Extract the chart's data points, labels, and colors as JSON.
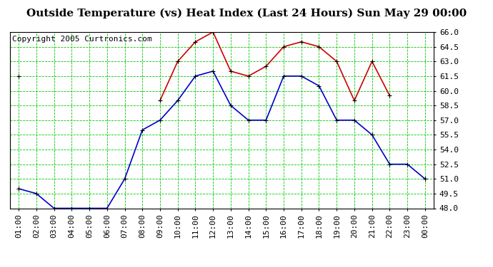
{
  "title": "Outside Temperature (vs) Heat Index (Last 24 Hours) Sun May 29 00:00",
  "copyright": "Copyright 2005 Curtronics.com",
  "hours": [
    "01:00",
    "02:00",
    "03:00",
    "04:00",
    "05:00",
    "06:00",
    "07:00",
    "08:00",
    "09:00",
    "10:00",
    "11:00",
    "12:00",
    "13:00",
    "14:00",
    "15:00",
    "16:00",
    "17:00",
    "18:00",
    "19:00",
    "20:00",
    "21:00",
    "22:00",
    "23:00",
    "00:00"
  ],
  "blue_data": [
    50.0,
    49.5,
    48.0,
    48.0,
    48.0,
    48.0,
    51.0,
    56.0,
    57.0,
    59.0,
    61.5,
    62.0,
    58.5,
    57.0,
    57.0,
    61.5,
    61.5,
    60.5,
    57.0,
    57.0,
    55.5,
    52.5,
    52.5,
    51.0
  ],
  "red_data": [
    61.5,
    null,
    null,
    null,
    null,
    null,
    null,
    null,
    59.0,
    63.0,
    65.0,
    66.0,
    62.0,
    61.5,
    62.5,
    64.5,
    65.0,
    64.5,
    63.0,
    59.0,
    63.0,
    59.5,
    null,
    51.0
  ],
  "ylim": [
    48.0,
    66.0
  ],
  "yticks": [
    48.0,
    49.5,
    51.0,
    52.5,
    54.0,
    55.5,
    57.0,
    58.5,
    60.0,
    61.5,
    63.0,
    64.5,
    66.0
  ],
  "bg_color": "#ffffff",
  "grid_color": "#00cc00",
  "blue_color": "#0000cc",
  "red_color": "#cc0000",
  "title_fontsize": 11,
  "copyright_fontsize": 8,
  "axis_fontsize": 8
}
